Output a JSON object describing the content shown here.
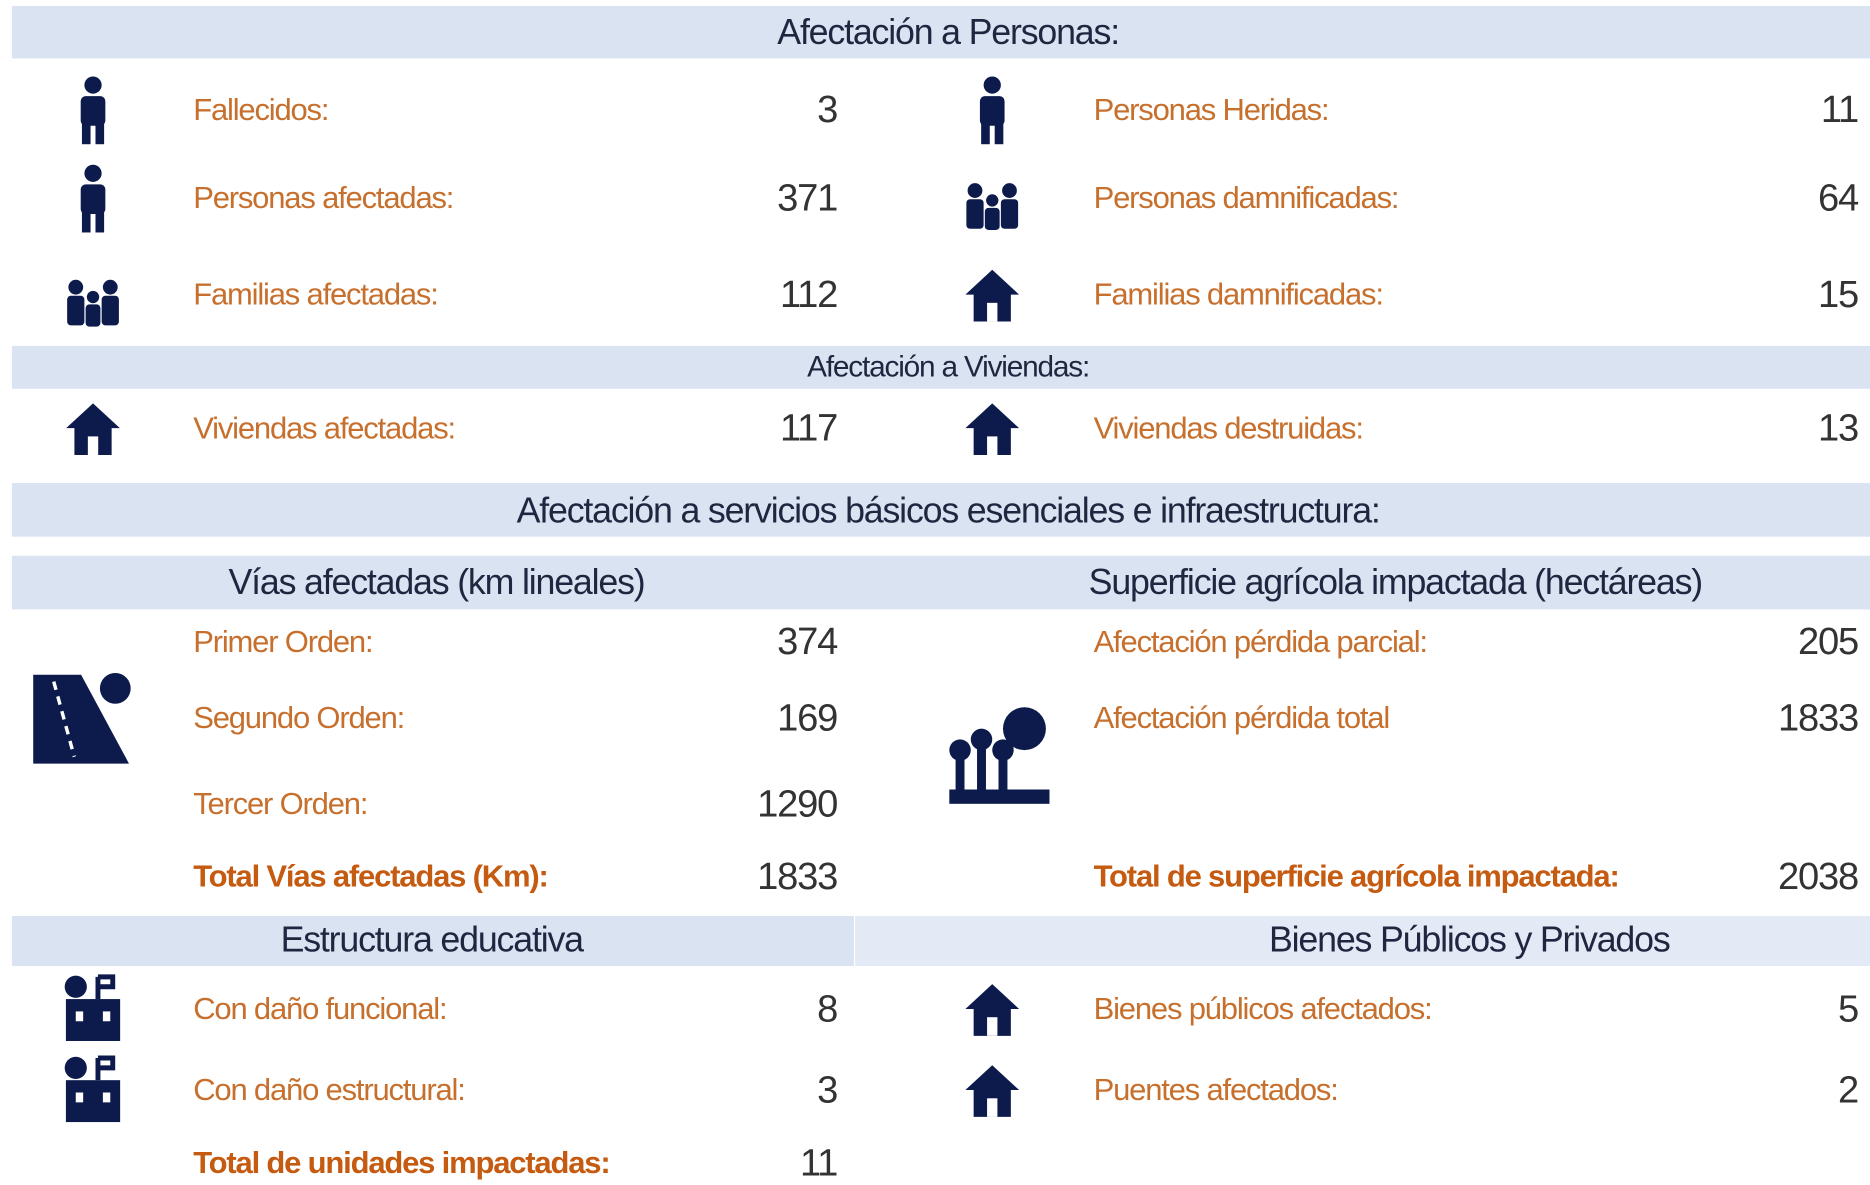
{
  "personas": {
    "title": "Afectación a Personas:",
    "items": [
      {
        "label": "Fallecidos:",
        "value": 3
      },
      {
        "label": "Personas Heridas:",
        "value": 11
      },
      {
        "label": "Personas afectadas:",
        "value": 371
      },
      {
        "label": "Personas damnificadas:",
        "value": 64
      },
      {
        "label": "Familias afectadas:",
        "value": 112
      },
      {
        "label": "Familias damnificadas:",
        "value": 15
      }
    ]
  },
  "viviendas": {
    "title": "Afectación a Viviendas:",
    "items": [
      {
        "label": "Viviendas afectadas:",
        "value": 117
      },
      {
        "label": "Viviendas destruidas:",
        "value": 13
      }
    ]
  },
  "servicios": {
    "title": "Afectación a servicios básicos esenciales e infraestructura:"
  },
  "vias": {
    "title": "Vías afectadas (km lineales)",
    "items": [
      {
        "label": "Primer Orden:",
        "value": 374
      },
      {
        "label": "Segundo Orden:",
        "value": 169
      },
      {
        "label": "Tercer Orden:",
        "value": 1290
      }
    ],
    "total": {
      "label": "Total Vías afectadas (Km):",
      "value": 1833
    }
  },
  "agricola": {
    "title": "Superficie agrícola impactada (hectáreas)",
    "items": [
      {
        "label": "Afectación pérdida parcial:",
        "value": 205
      },
      {
        "label": "Afectación pérdida total",
        "value": 1833
      }
    ],
    "total": {
      "label": "Total de superficie agrícola impactada:",
      "value": 2038
    }
  },
  "educativa": {
    "title": "Estructura educativa",
    "items": [
      {
        "label": "Con daño funcional:",
        "value": 8
      },
      {
        "label": "Con daño estructural:",
        "value": 3
      }
    ],
    "total": {
      "label": "Total de unidades impactadas:",
      "value": 11
    }
  },
  "bienes": {
    "title": "Bienes Públicos y Privados",
    "items": [
      {
        "label": "Bienes públicos afectados:",
        "value": 5
      },
      {
        "label": "Puentes afectados:",
        "value": 2
      }
    ]
  }
}
